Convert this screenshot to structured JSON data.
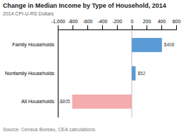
{
  "chart_data": {
    "type": "bar",
    "orientation": "horizontal",
    "title": "Change in Median Income by Type of Household, 2014",
    "subtitle": "2014 CPI-U-RS Dollars",
    "source": "Source: Census Bureau, CEA calculations.",
    "categories": [
      "Family Households",
      "Nonfamily Households",
      "All Households"
    ],
    "values": [
      408,
      52,
      -805
    ],
    "value_labels": [
      "$408",
      "$52",
      "-$805"
    ],
    "colors": [
      "#5B9BD5",
      "#5B9BD5",
      "#F4ACAC"
    ],
    "xlim": [
      -1000,
      600
    ],
    "xticks": [
      {
        "value": -1000,
        "label": "-1,000"
      },
      -800,
      -600,
      -400,
      -200,
      0,
      200,
      400,
      600
    ],
    "grid": false,
    "data_labels": true
  }
}
